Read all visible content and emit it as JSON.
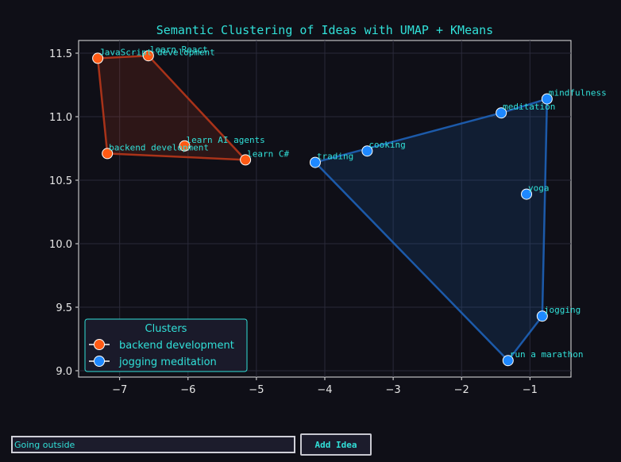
{
  "chart_data": {
    "type": "scatter",
    "title": "Semantic Clustering of Ideas with UMAP + KMeans",
    "xlabel": "",
    "ylabel": "",
    "xlim": [
      -7.6,
      -0.4
    ],
    "ylim": [
      8.95,
      11.6
    ],
    "x_ticks": [
      -7,
      -6,
      -5,
      -4,
      -3,
      -2,
      -1
    ],
    "x_tick_labels": [
      "−7",
      "−6",
      "−5",
      "−4",
      "−3",
      "−2",
      "−1"
    ],
    "y_ticks": [
      9.0,
      9.5,
      10.0,
      10.5,
      11.0,
      11.5
    ],
    "y_tick_labels": [
      "9.0",
      "9.5",
      "10.0",
      "10.5",
      "11.0",
      "11.5"
    ],
    "grid": true,
    "legend": {
      "title": "Clusters",
      "position": "bottom-left"
    },
    "clusters": [
      {
        "name": "backend development",
        "color": "#ff5a14",
        "hull_color": "#b8361a",
        "hull": [
          "JavaScript development",
          "learn React",
          "learn C#",
          "backend development"
        ],
        "points": [
          {
            "label": "JavaScript development",
            "x": -7.32,
            "y": 11.46
          },
          {
            "label": "learn React",
            "x": -6.58,
            "y": 11.48
          },
          {
            "label": "backend development",
            "x": -7.18,
            "y": 10.71
          },
          {
            "label": "learn AI agents",
            "x": -6.05,
            "y": 10.77
          },
          {
            "label": "learn C#",
            "x": -5.16,
            "y": 10.66
          }
        ]
      },
      {
        "name": "jogging meditation",
        "color": "#1e88ff",
        "hull_color": "#1e62b8",
        "hull": [
          "trading",
          "meditation",
          "mindfulness",
          "jogging",
          "run a marathon"
        ],
        "points": [
          {
            "label": "trading",
            "x": -4.14,
            "y": 10.64
          },
          {
            "label": "cooking",
            "x": -3.38,
            "y": 10.73
          },
          {
            "label": "meditation",
            "x": -1.42,
            "y": 11.03
          },
          {
            "label": "mindfulness",
            "x": -0.75,
            "y": 11.14
          },
          {
            "label": "yoga",
            "x": -1.05,
            "y": 10.39
          },
          {
            "label": "jogging",
            "x": -0.82,
            "y": 9.43
          },
          {
            "label": "run a marathon",
            "x": -1.32,
            "y": 9.08
          }
        ]
      }
    ]
  },
  "controls": {
    "input_value": "Going outside",
    "add_button_label": "Add Idea"
  },
  "colors": {
    "background": "#0f0f17",
    "accent_text": "#31e0d8",
    "grid": "#2a2a3a",
    "axis": "#e6e6e6"
  }
}
